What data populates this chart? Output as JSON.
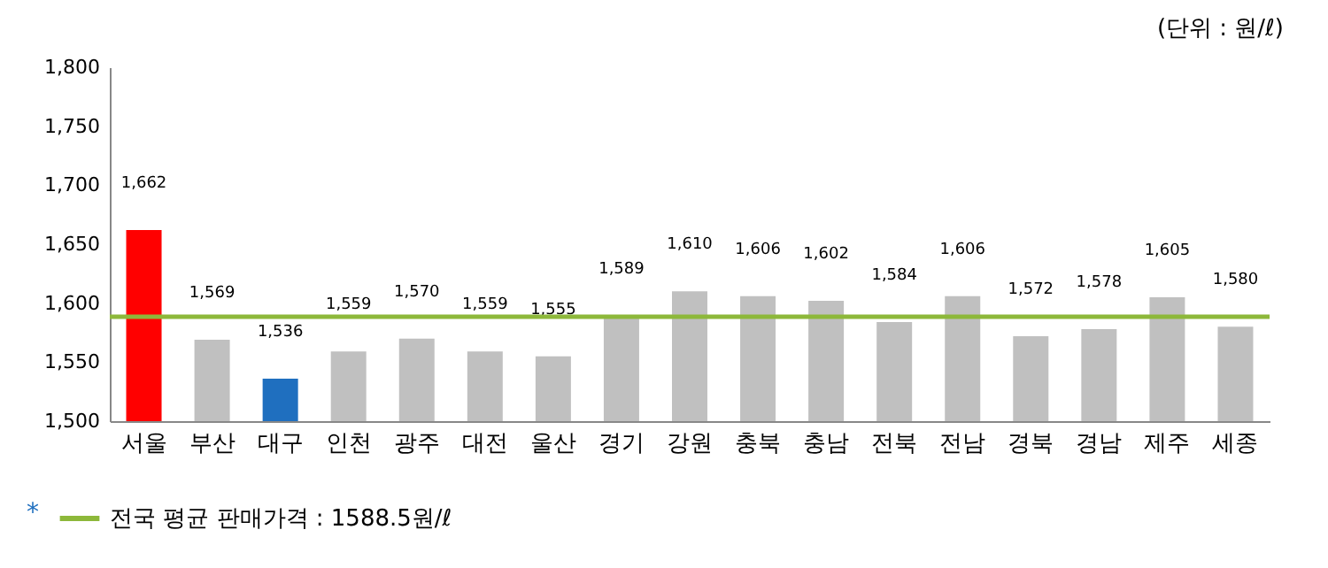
{
  "chart_data": {
    "type": "bar",
    "categories": [
      "서울",
      "부산",
      "대구",
      "인천",
      "광주",
      "대전",
      "울산",
      "경기",
      "강원",
      "충북",
      "충남",
      "전북",
      "전남",
      "경북",
      "경남",
      "제주",
      "세종"
    ],
    "values": [
      1662,
      1569,
      1536,
      1559,
      1570,
      1559,
      1555,
      1589,
      1610,
      1606,
      1602,
      1584,
      1606,
      1572,
      1578,
      1605,
      1580
    ],
    "colors": [
      "#ff0000",
      "#c0c0c0",
      "#1f6fbf",
      "#c0c0c0",
      "#c0c0c0",
      "#c0c0c0",
      "#c0c0c0",
      "#c0c0c0",
      "#c0c0c0",
      "#c0c0c0",
      "#c0c0c0",
      "#c0c0c0",
      "#c0c0c0",
      "#c0c0c0",
      "#c0c0c0",
      "#c0c0c0",
      "#c0c0c0"
    ],
    "value_labels": [
      "1,662",
      "1,569",
      "1,536",
      "1,559",
      "1,570",
      "1,559",
      "1,555",
      "1,589",
      "1,610",
      "1,606",
      "1,602",
      "1,584",
      "1,606",
      "1,572",
      "1,578",
      "1,605",
      "1,580"
    ],
    "ylim": [
      1500,
      1800
    ],
    "yticks": [
      {
        "value": 1500,
        "label": "1,500"
      },
      {
        "value": 1550,
        "label": "1,550"
      },
      {
        "value": 1600,
        "label": "1,600"
      },
      {
        "value": 1650,
        "label": "1,650"
      },
      {
        "value": 1700,
        "label": "1,700"
      },
      {
        "value": 1750,
        "label": "1,750"
      },
      {
        "value": 1800,
        "label": "1,800"
      }
    ],
    "ref_lines": [
      {
        "axis": "y",
        "value": 1588.5,
        "label": "전국 평균 판매가격 : 1588.5원/ℓ",
        "color": "#8db83a"
      }
    ],
    "legend": "bottom left",
    "grid": false,
    "annotations": [
      "(단위 : 원/ℓ)",
      "*"
    ]
  }
}
